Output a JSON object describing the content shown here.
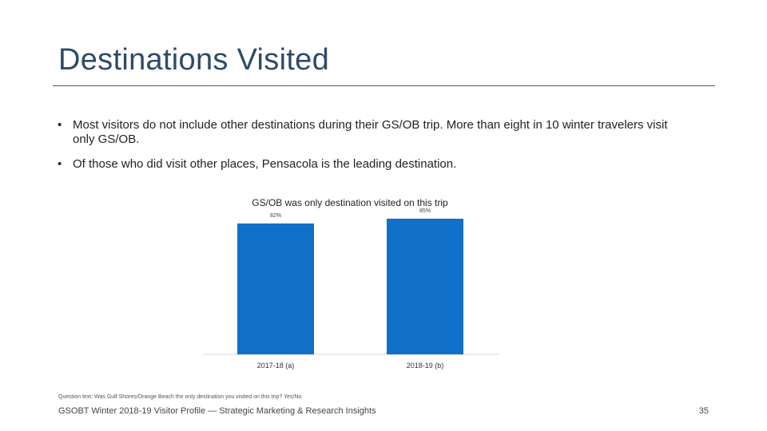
{
  "slide": {
    "title": "Destinations Visited",
    "bullets": [
      "Most visitors do not include other destinations during their GS/OB trip. More than eight in 10 winter travelers visit only GS/OB.",
      "Of those who did visit other places, Pensacola is the leading destination."
    ],
    "footnote": "Question text: Was Gulf Shores/Orange Beach the only destination you visited on this trip? Yes/No",
    "footer": "GSOBT Winter 2018-19 Visitor Profile — Strategic Marketing & Research Insights",
    "page_number": "35"
  },
  "colors": {
    "title": "#2d4b68",
    "bar": "#1170c8",
    "rule": "#3d5c78"
  },
  "chart_data": {
    "type": "bar",
    "title": "GS/OB was only destination visited on this trip",
    "categories": [
      "2017-18 (a)",
      "2018-19 (b)"
    ],
    "values": [
      82,
      85
    ],
    "data_labels": [
      "82%",
      "85%"
    ],
    "ylim": [
      0,
      100
    ],
    "grid": false,
    "legend": "none"
  }
}
